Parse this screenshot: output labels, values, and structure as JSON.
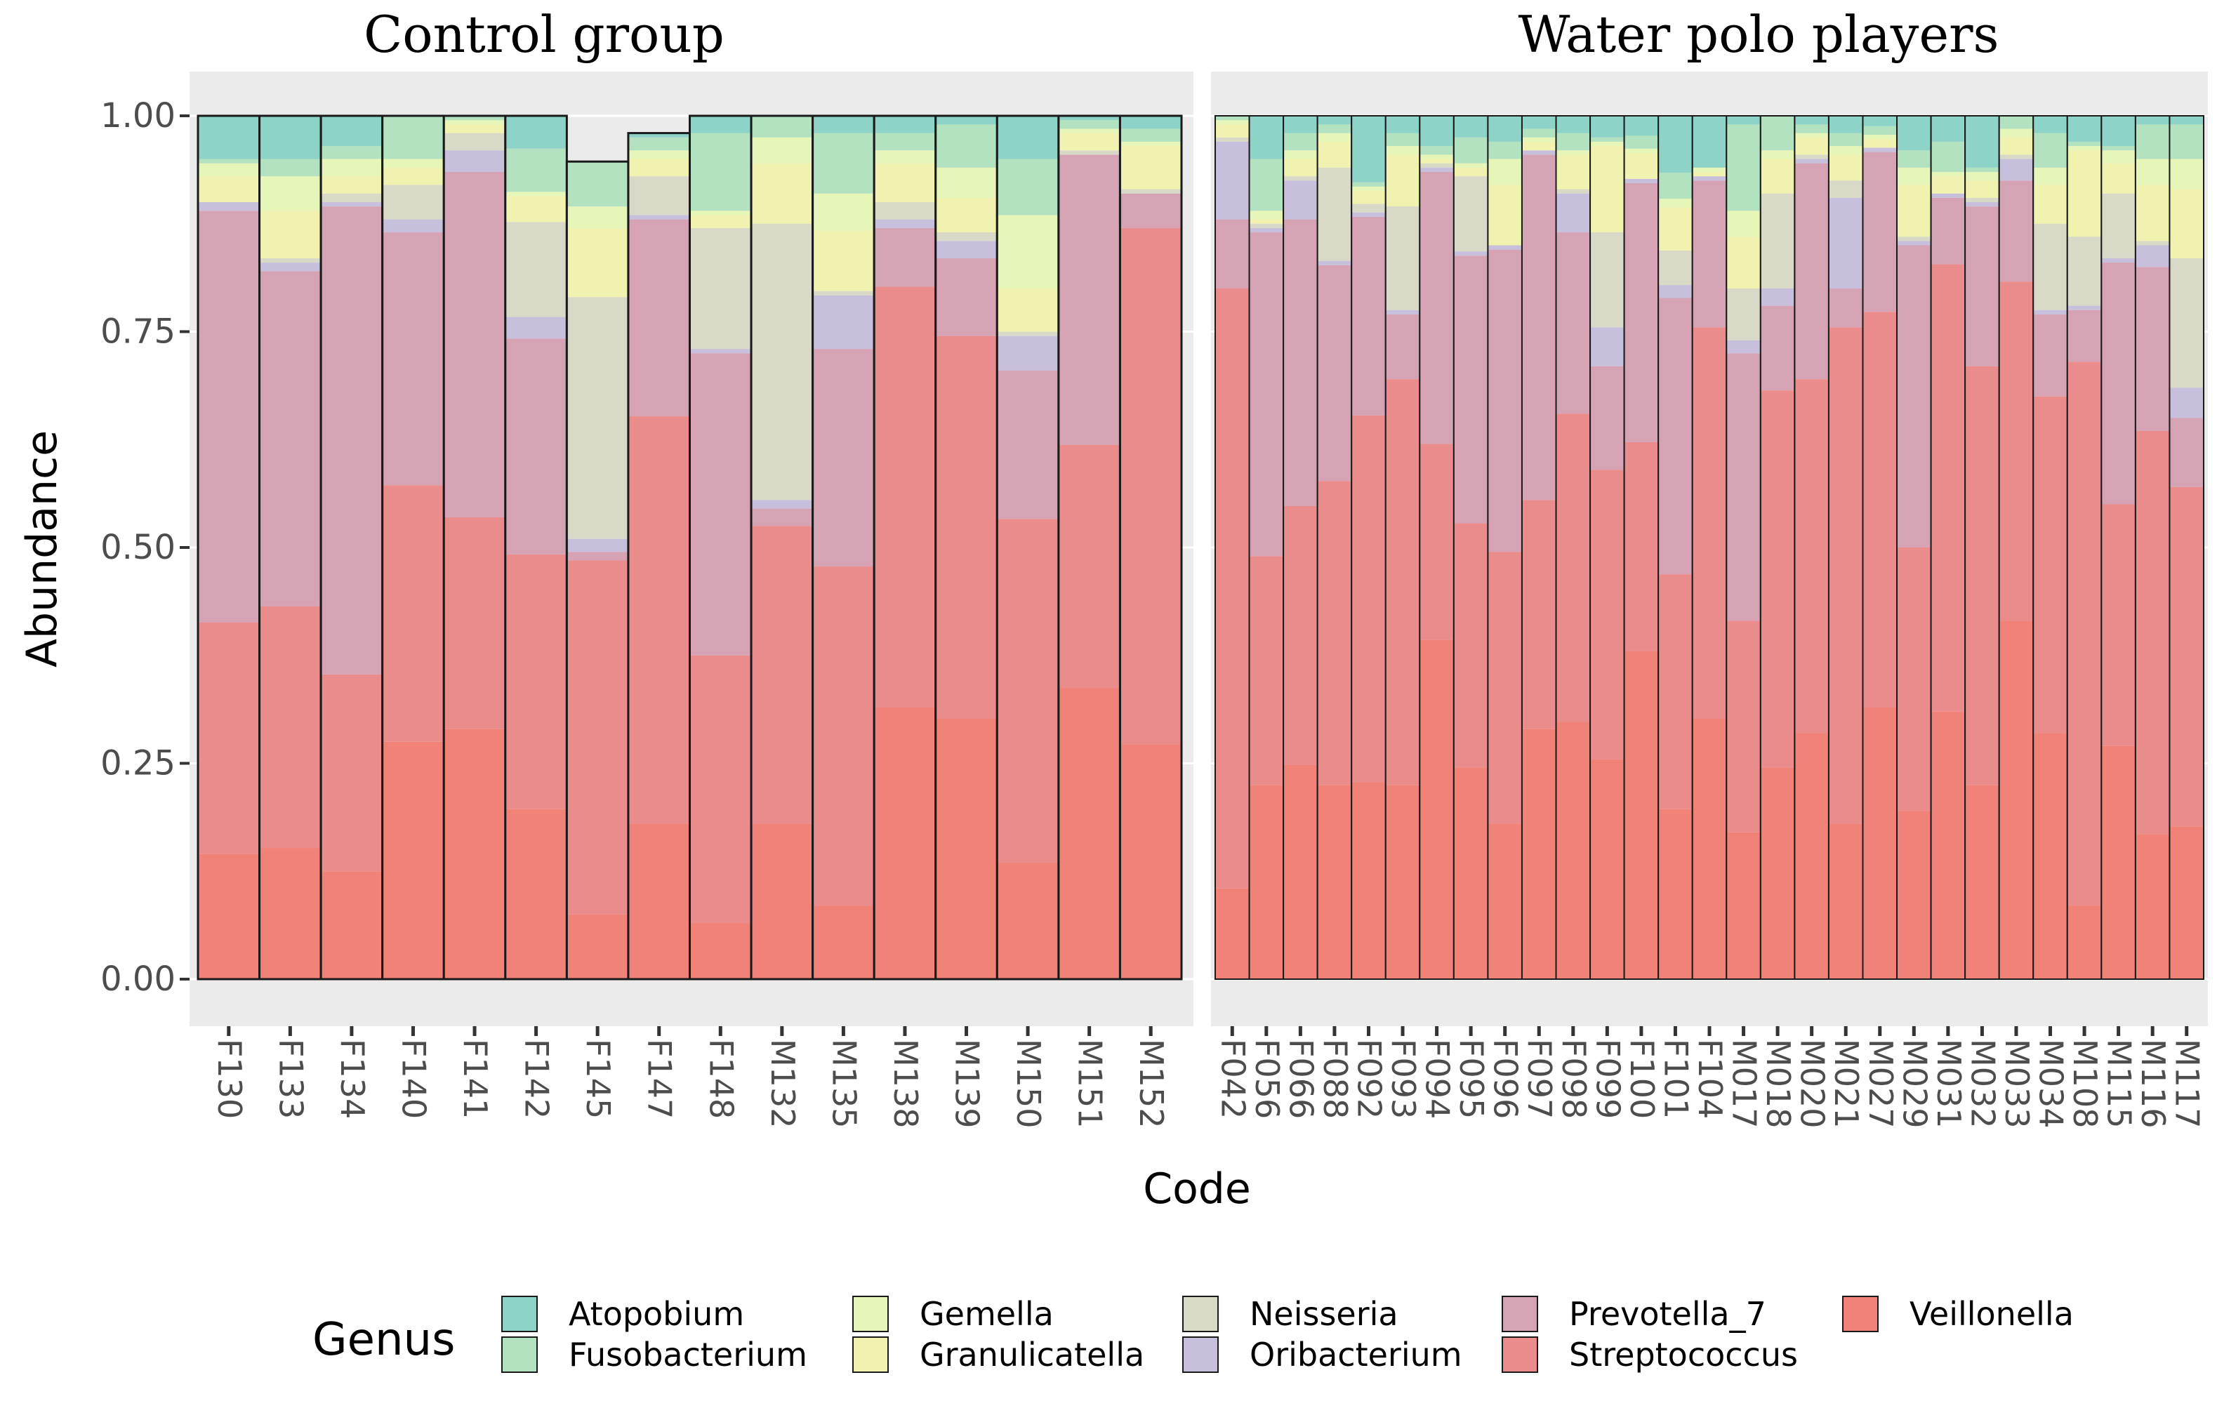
{
  "chart_data": {
    "type": "bar",
    "stacked": true,
    "xlabel": "Code",
    "ylabel": "Abundance",
    "ylim": [
      0,
      1
    ],
    "yticks": [
      "0.00",
      "0.25",
      "0.50",
      "0.75",
      "1.00"
    ],
    "legend": {
      "title": "Genus",
      "position": "bottom",
      "entries": [
        "Atopobium",
        "Fusobacterium",
        "Gemella",
        "Granulicatella",
        "Neisseria",
        "Oribacterium",
        "Prevotella_7",
        "Streptococcus",
        "Veillonella"
      ]
    },
    "colors": {
      "Atopobium": "#8dd3c7",
      "Fusobacterium": "#b3e2c0",
      "Gemella": "#e6f5b8",
      "Granulicatella": "#f2f2b0",
      "Neisseria": "#d9d9c8",
      "Oribacterium": "#c7bfdb",
      "Prevotella_7": "#d6a3b5",
      "Streptococcus": "#eb8c8c",
      "Veillonella": "#f08278"
    },
    "stack_order_bottom_to_top": [
      "Veillonella",
      "Streptococcus",
      "Prevotella_7",
      "Oribacterium",
      "Neisseria",
      "Granulicatella",
      "Gemella",
      "Fusobacterium",
      "Atopobium"
    ],
    "panels": [
      {
        "title": "Control group",
        "samples": [
          {
            "code": "F130",
            "Veillonella": 0.145,
            "Streptococcus": 0.268,
            "Prevotella_7": 0.477,
            "Oribacterium": 0.01,
            "Neisseria": 0.0,
            "Granulicatella": 0.03,
            "Gemella": 0.015,
            "Fusobacterium": 0.005,
            "Atopobium": 0.05
          },
          {
            "code": "F133",
            "Veillonella": 0.152,
            "Streptococcus": 0.28,
            "Prevotella_7": 0.388,
            "Oribacterium": 0.01,
            "Neisseria": 0.005,
            "Granulicatella": 0.055,
            "Gemella": 0.04,
            "Fusobacterium": 0.02,
            "Atopobium": 0.05
          },
          {
            "code": "F134",
            "Veillonella": 0.125,
            "Streptococcus": 0.228,
            "Prevotella_7": 0.542,
            "Oribacterium": 0.005,
            "Neisseria": 0.01,
            "Granulicatella": 0.02,
            "Gemella": 0.02,
            "Fusobacterium": 0.015,
            "Atopobium": 0.035
          },
          {
            "code": "F140",
            "Veillonella": 0.275,
            "Streptococcus": 0.297,
            "Prevotella_7": 0.293,
            "Oribacterium": 0.015,
            "Neisseria": 0.04,
            "Granulicatella": 0.02,
            "Gemella": 0.01,
            "Fusobacterium": 0.05,
            "Atopobium": 0.0
          },
          {
            "code": "F141",
            "Veillonella": 0.29,
            "Streptococcus": 0.245,
            "Prevotella_7": 0.4,
            "Oribacterium": 0.025,
            "Neisseria": 0.02,
            "Granulicatella": 0.01,
            "Gemella": 0.005,
            "Fusobacterium": 0.005,
            "Atopobium": 0.0
          },
          {
            "code": "F142",
            "Veillonella": 0.197,
            "Streptococcus": 0.295,
            "Prevotella_7": 0.25,
            "Oribacterium": 0.025,
            "Neisseria": 0.11,
            "Granulicatella": 0.03,
            "Gemella": 0.005,
            "Fusobacterium": 0.05,
            "Atopobium": 0.038
          },
          {
            "code": "F145",
            "Veillonella": 0.075,
            "Streptococcus": 0.41,
            "Prevotella_7": 0.01,
            "Oribacterium": 0.015,
            "Neisseria": 0.28,
            "Granulicatella": 0.08,
            "Gemella": 0.025,
            "Fusobacterium": 0.052,
            "Atopobium": 0.0
          },
          {
            "code": "F147",
            "Veillonella": 0.18,
            "Streptococcus": 0.472,
            "Prevotella_7": 0.228,
            "Oribacterium": 0.005,
            "Neisseria": 0.045,
            "Granulicatella": 0.02,
            "Gemella": 0.01,
            "Fusobacterium": 0.015,
            "Atopobium": 0.005
          },
          {
            "code": "F148",
            "Veillonella": 0.065,
            "Streptococcus": 0.31,
            "Prevotella_7": 0.35,
            "Oribacterium": 0.005,
            "Neisseria": 0.14,
            "Granulicatella": 0.015,
            "Gemella": 0.005,
            "Fusobacterium": 0.09,
            "Atopobium": 0.02
          },
          {
            "code": "M132",
            "Veillonella": 0.18,
            "Streptococcus": 0.345,
            "Prevotella_7": 0.02,
            "Oribacterium": 0.01,
            "Neisseria": 0.32,
            "Granulicatella": 0.07,
            "Gemella": 0.03,
            "Fusobacterium": 0.025,
            "Atopobium": 0.0
          },
          {
            "code": "M135",
            "Veillonella": 0.085,
            "Streptococcus": 0.393,
            "Prevotella_7": 0.252,
            "Oribacterium": 0.062,
            "Neisseria": 0.005,
            "Granulicatella": 0.07,
            "Gemella": 0.043,
            "Fusobacterium": 0.07,
            "Atopobium": 0.02
          },
          {
            "code": "M138",
            "Veillonella": 0.315,
            "Streptococcus": 0.487,
            "Prevotella_7": 0.068,
            "Oribacterium": 0.01,
            "Neisseria": 0.02,
            "Granulicatella": 0.045,
            "Gemella": 0.015,
            "Fusobacterium": 0.02,
            "Atopobium": 0.02
          },
          {
            "code": "M139",
            "Veillonella": 0.302,
            "Streptococcus": 0.443,
            "Prevotella_7": 0.09,
            "Oribacterium": 0.02,
            "Neisseria": 0.01,
            "Granulicatella": 0.04,
            "Gemella": 0.035,
            "Fusobacterium": 0.05,
            "Atopobium": 0.01
          },
          {
            "code": "M150",
            "Veillonella": 0.135,
            "Streptococcus": 0.398,
            "Prevotella_7": 0.172,
            "Oribacterium": 0.04,
            "Neisseria": 0.005,
            "Granulicatella": 0.05,
            "Gemella": 0.085,
            "Fusobacterium": 0.065,
            "Atopobium": 0.05
          },
          {
            "code": "M151",
            "Veillonella": 0.337,
            "Streptococcus": 0.282,
            "Prevotella_7": 0.336,
            "Oribacterium": 0.0,
            "Neisseria": 0.005,
            "Granulicatella": 0.02,
            "Gemella": 0.005,
            "Fusobacterium": 0.01,
            "Atopobium": 0.005
          },
          {
            "code": "M152",
            "Veillonella": 0.272,
            "Streptococcus": 0.598,
            "Prevotella_7": 0.04,
            "Oribacterium": 0.0,
            "Neisseria": 0.005,
            "Granulicatella": 0.05,
            "Gemella": 0.005,
            "Fusobacterium": 0.015,
            "Atopobium": 0.015
          }
        ]
      },
      {
        "title": "Water polo players",
        "samples": [
          {
            "code": "F042",
            "Veillonella": 0.105,
            "Streptococcus": 0.695,
            "Prevotella_7": 0.08,
            "Oribacterium": 0.09,
            "Neisseria": 0.005,
            "Granulicatella": 0.015,
            "Gemella": 0.005,
            "Fusobacterium": 0.005,
            "Atopobium": 0.0
          },
          {
            "code": "F056",
            "Veillonella": 0.225,
            "Streptococcus": 0.265,
            "Prevotella_7": 0.375,
            "Oribacterium": 0.005,
            "Neisseria": 0.005,
            "Granulicatella": 0.005,
            "Gemella": 0.01,
            "Fusobacterium": 0.06,
            "Atopobium": 0.05
          },
          {
            "code": "F066",
            "Veillonella": 0.248,
            "Streptococcus": 0.3,
            "Prevotella_7": 0.332,
            "Oribacterium": 0.045,
            "Neisseria": 0.005,
            "Granulicatella": 0.02,
            "Gemella": 0.01,
            "Fusobacterium": 0.02,
            "Atopobium": 0.02
          },
          {
            "code": "F088",
            "Veillonella": 0.225,
            "Streptococcus": 0.352,
            "Prevotella_7": 0.25,
            "Oribacterium": 0.005,
            "Neisseria": 0.108,
            "Granulicatella": 0.03,
            "Gemella": 0.01,
            "Fusobacterium": 0.01,
            "Atopobium": 0.01
          },
          {
            "code": "F092",
            "Veillonella": 0.228,
            "Streptococcus": 0.425,
            "Prevotella_7": 0.23,
            "Oribacterium": 0.005,
            "Neisseria": 0.01,
            "Granulicatella": 0.015,
            "Gemella": 0.005,
            "Fusobacterium": 0.005,
            "Atopobium": 0.077
          },
          {
            "code": "F093",
            "Veillonella": 0.225,
            "Streptococcus": 0.47,
            "Prevotella_7": 0.075,
            "Oribacterium": 0.005,
            "Neisseria": 0.12,
            "Granulicatella": 0.06,
            "Gemella": 0.01,
            "Fusobacterium": 0.015,
            "Atopobium": 0.02
          },
          {
            "code": "F094",
            "Veillonella": 0.393,
            "Streptococcus": 0.227,
            "Prevotella_7": 0.315,
            "Oribacterium": 0.005,
            "Neisseria": 0.005,
            "Granulicatella": 0.005,
            "Gemella": 0.005,
            "Fusobacterium": 0.01,
            "Atopobium": 0.035
          },
          {
            "code": "F095",
            "Veillonella": 0.245,
            "Streptococcus": 0.283,
            "Prevotella_7": 0.31,
            "Oribacterium": 0.005,
            "Neisseria": 0.087,
            "Granulicatella": 0.01,
            "Gemella": 0.005,
            "Fusobacterium": 0.03,
            "Atopobium": 0.025
          },
          {
            "code": "F096",
            "Veillonella": 0.18,
            "Streptococcus": 0.315,
            "Prevotella_7": 0.35,
            "Oribacterium": 0.005,
            "Neisseria": 0.0,
            "Granulicatella": 0.07,
            "Gemella": 0.03,
            "Fusobacterium": 0.02,
            "Atopobium": 0.03
          },
          {
            "code": "F097",
            "Veillonella": 0.29,
            "Streptococcus": 0.265,
            "Prevotella_7": 0.4,
            "Oribacterium": 0.005,
            "Neisseria": 0.0,
            "Granulicatella": 0.01,
            "Gemella": 0.005,
            "Fusobacterium": 0.01,
            "Atopobium": 0.015
          },
          {
            "code": "F098",
            "Veillonella": 0.298,
            "Streptococcus": 0.357,
            "Prevotella_7": 0.21,
            "Oribacterium": 0.045,
            "Neisseria": 0.005,
            "Granulicatella": 0.04,
            "Gemella": 0.005,
            "Fusobacterium": 0.02,
            "Atopobium": 0.02
          },
          {
            "code": "F099",
            "Veillonella": 0.255,
            "Streptococcus": 0.335,
            "Prevotella_7": 0.12,
            "Oribacterium": 0.045,
            "Neisseria": 0.11,
            "Granulicatella": 0.1,
            "Gemella": 0.005,
            "Fusobacterium": 0.005,
            "Atopobium": 0.025
          },
          {
            "code": "F100",
            "Veillonella": 0.38,
            "Streptococcus": 0.242,
            "Prevotella_7": 0.3,
            "Oribacterium": 0.005,
            "Neisseria": 0.0,
            "Granulicatella": 0.03,
            "Gemella": 0.005,
            "Fusobacterium": 0.015,
            "Atopobium": 0.023
          },
          {
            "code": "F101",
            "Veillonella": 0.197,
            "Streptococcus": 0.272,
            "Prevotella_7": 0.32,
            "Oribacterium": 0.015,
            "Neisseria": 0.04,
            "Granulicatella": 0.05,
            "Gemella": 0.01,
            "Fusobacterium": 0.03,
            "Atopobium": 0.066
          },
          {
            "code": "F104",
            "Veillonella": 0.302,
            "Streptococcus": 0.453,
            "Prevotella_7": 0.17,
            "Oribacterium": 0.005,
            "Neisseria": 0.0,
            "Granulicatella": 0.005,
            "Gemella": 0.005,
            "Fusobacterium": 0.0,
            "Atopobium": 0.06
          },
          {
            "code": "M017",
            "Veillonella": 0.17,
            "Streptococcus": 0.245,
            "Prevotella_7": 0.31,
            "Oribacterium": 0.015,
            "Neisseria": 0.06,
            "Granulicatella": 0.06,
            "Gemella": 0.03,
            "Fusobacterium": 0.1,
            "Atopobium": 0.01
          },
          {
            "code": "M018",
            "Veillonella": 0.245,
            "Streptococcus": 0.437,
            "Prevotella_7": 0.098,
            "Oribacterium": 0.02,
            "Neisseria": 0.11,
            "Granulicatella": 0.04,
            "Gemella": 0.01,
            "Fusobacterium": 0.04,
            "Atopobium": 0.0
          },
          {
            "code": "M020",
            "Veillonella": 0.285,
            "Streptococcus": 0.41,
            "Prevotella_7": 0.25,
            "Oribacterium": 0.005,
            "Neisseria": 0.005,
            "Granulicatella": 0.02,
            "Gemella": 0.005,
            "Fusobacterium": 0.01,
            "Atopobium": 0.01
          },
          {
            "code": "M021",
            "Veillonella": 0.18,
            "Streptococcus": 0.575,
            "Prevotella_7": 0.045,
            "Oribacterium": 0.105,
            "Neisseria": 0.02,
            "Granulicatella": 0.03,
            "Gemella": 0.01,
            "Fusobacterium": 0.015,
            "Atopobium": 0.02
          },
          {
            "code": "M027",
            "Veillonella": 0.315,
            "Streptococcus": 0.458,
            "Prevotella_7": 0.185,
            "Oribacterium": 0.005,
            "Neisseria": 0.0,
            "Granulicatella": 0.01,
            "Gemella": 0.005,
            "Fusobacterium": 0.01,
            "Atopobium": 0.012
          },
          {
            "code": "M029",
            "Veillonella": 0.195,
            "Streptococcus": 0.305,
            "Prevotella_7": 0.35,
            "Oribacterium": 0.005,
            "Neisseria": 0.005,
            "Granulicatella": 0.06,
            "Gemella": 0.02,
            "Fusobacterium": 0.02,
            "Atopobium": 0.04
          },
          {
            "code": "M031",
            "Veillonella": 0.31,
            "Streptococcus": 0.518,
            "Prevotella_7": 0.077,
            "Oribacterium": 0.005,
            "Neisseria": 0.0,
            "Granulicatella": 0.02,
            "Gemella": 0.005,
            "Fusobacterium": 0.035,
            "Atopobium": 0.03
          },
          {
            "code": "M032",
            "Veillonella": 0.225,
            "Streptococcus": 0.485,
            "Prevotella_7": 0.185,
            "Oribacterium": 0.005,
            "Neisseria": 0.005,
            "Granulicatella": 0.02,
            "Gemella": 0.01,
            "Fusobacterium": 0.005,
            "Atopobium": 0.06
          },
          {
            "code": "M033",
            "Veillonella": 0.415,
            "Streptococcus": 0.393,
            "Prevotella_7": 0.117,
            "Oribacterium": 0.025,
            "Neisseria": 0.005,
            "Granulicatella": 0.02,
            "Gemella": 0.01,
            "Fusobacterium": 0.015,
            "Atopobium": 0.0
          },
          {
            "code": "M034",
            "Veillonella": 0.285,
            "Streptococcus": 0.39,
            "Prevotella_7": 0.095,
            "Oribacterium": 0.005,
            "Neisseria": 0.1,
            "Granulicatella": 0.045,
            "Gemella": 0.02,
            "Fusobacterium": 0.04,
            "Atopobium": 0.02
          },
          {
            "code": "M108",
            "Veillonella": 0.085,
            "Streptococcus": 0.63,
            "Prevotella_7": 0.06,
            "Oribacterium": 0.005,
            "Neisseria": 0.08,
            "Granulicatella": 0.1,
            "Gemella": 0.005,
            "Fusobacterium": 0.005,
            "Atopobium": 0.03
          },
          {
            "code": "M115",
            "Veillonella": 0.27,
            "Streptococcus": 0.28,
            "Prevotella_7": 0.28,
            "Oribacterium": 0.005,
            "Neisseria": 0.075,
            "Granulicatella": 0.035,
            "Gemella": 0.015,
            "Fusobacterium": 0.005,
            "Atopobium": 0.035
          },
          {
            "code": "M116",
            "Veillonella": 0.168,
            "Streptococcus": 0.467,
            "Prevotella_7": 0.19,
            "Oribacterium": 0.025,
            "Neisseria": 0.005,
            "Granulicatella": 0.065,
            "Gemella": 0.03,
            "Fusobacterium": 0.04,
            "Atopobium": 0.01
          },
          {
            "code": "M117",
            "Veillonella": 0.177,
            "Streptococcus": 0.393,
            "Prevotella_7": 0.08,
            "Oribacterium": 0.035,
            "Neisseria": 0.15,
            "Granulicatella": 0.08,
            "Gemella": 0.035,
            "Fusobacterium": 0.04,
            "Atopobium": 0.01
          }
        ]
      }
    ]
  }
}
